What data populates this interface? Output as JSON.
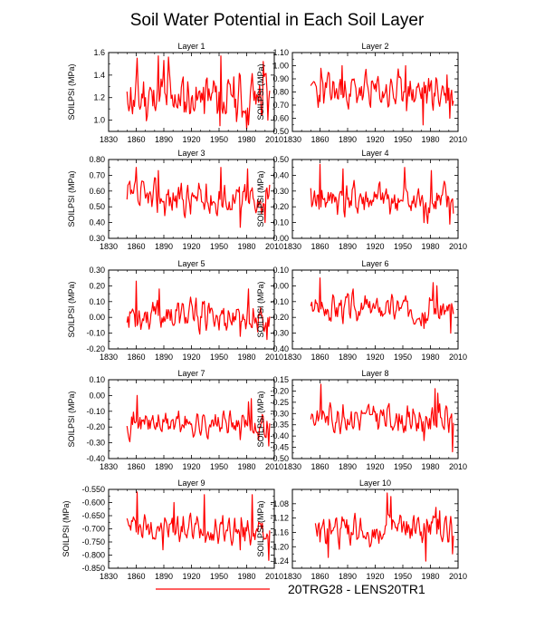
{
  "figure": {
    "title": "Soil Water Potential in Each Soil Layer",
    "legend_label": "20TRG28 - LENS20TR1",
    "line_color": "#ff0000"
  },
  "chart_data": [
    {
      "type": "line",
      "title": "Layer 1",
      "ylabel": "SOILPSI  (MPa)",
      "xlim": [
        1830,
        2010
      ],
      "ylim": [
        0.9,
        1.6
      ],
      "xticks": [
        1830,
        1860,
        1890,
        1920,
        1950,
        1980,
        2010
      ],
      "yticks": [
        "1.0",
        "1.2",
        "1.4",
        "1.6"
      ],
      "ytick_values": [
        1.0,
        1.2,
        1.4,
        1.6
      ],
      "x_start": 1850,
      "x_end": 2005,
      "mean": 1.2,
      "amplitude": 0.13,
      "trend": 0.0,
      "peaks": [
        [
          1861,
          1.55
        ],
        [
          1884,
          1.57
        ],
        [
          1890,
          1.53
        ],
        [
          1895,
          1.56
        ],
        [
          1952,
          1.57
        ],
        [
          1998,
          1.52
        ]
      ],
      "troughs": [
        [
          1951,
          0.95
        ],
        [
          1980,
          0.92
        ],
        [
          2003,
          1.0
        ]
      ],
      "seed": 11,
      "legend": "20TRG28 - LENS20TR1"
    },
    {
      "type": "line",
      "title": "Layer 2",
      "ylabel": "SOILPSI  (MPa)",
      "xlim": [
        1830,
        2010
      ],
      "ylim": [
        0.5,
        1.1
      ],
      "xticks": [
        1830,
        1860,
        1890,
        1920,
        1950,
        1980,
        2010
      ],
      "yticks": [
        "0.50",
        "0.60",
        "0.70",
        "0.80",
        "0.90",
        "1.00",
        "1.10"
      ],
      "ytick_values": [
        0.5,
        0.6,
        0.7,
        0.8,
        0.9,
        1.0,
        1.1
      ],
      "x_start": 1850,
      "x_end": 2005,
      "mean": 0.8,
      "amplitude": 0.08,
      "trend": 0.0,
      "peaks": [
        [
          1861,
          0.98
        ],
        [
          1884,
          1.0
        ],
        [
          1953,
          1.0
        ],
        [
          1998,
          0.93
        ]
      ],
      "troughs": [
        [
          1972,
          0.55
        ],
        [
          2001,
          0.6
        ]
      ],
      "seed": 23,
      "legend": "20TRG28 - LENS20TR1"
    },
    {
      "type": "line",
      "title": "Layer 3",
      "ylabel": "SOILPSI  (MPa)",
      "xlim": [
        1830,
        2010
      ],
      "ylim": [
        0.3,
        0.8
      ],
      "xticks": [
        1830,
        1860,
        1890,
        1920,
        1950,
        1980,
        2010
      ],
      "yticks": [
        "0.30",
        "0.40",
        "0.50",
        "0.60",
        "0.70",
        "0.80"
      ],
      "ytick_values": [
        0.3,
        0.4,
        0.5,
        0.6,
        0.7,
        0.8
      ],
      "x_start": 1850,
      "x_end": 2005,
      "mean": 0.55,
      "amplitude": 0.06,
      "trend": 0.0,
      "peaks": [
        [
          1860,
          0.75
        ],
        [
          1884,
          0.73
        ],
        [
          1952,
          0.75
        ],
        [
          1981,
          0.74
        ]
      ],
      "troughs": [
        [
          1973,
          0.37
        ],
        [
          2000,
          0.4
        ]
      ],
      "seed": 37,
      "legend": "20TRG28 - LENS20TR1"
    },
    {
      "type": "line",
      "title": "Layer 4",
      "ylabel": "SOILPSI  (MPa)",
      "xlim": [
        1830,
        2010
      ],
      "ylim": [
        0.0,
        0.5
      ],
      "xticks": [
        1830,
        1860,
        1890,
        1920,
        1950,
        1980,
        2010
      ],
      "yticks": [
        "0.00",
        "0.10",
        "0.20",
        "0.30",
        "0.40",
        "0.50"
      ],
      "ytick_values": [
        0.0,
        0.1,
        0.2,
        0.3,
        0.4,
        0.5
      ],
      "x_start": 1850,
      "x_end": 2005,
      "mean": 0.25,
      "amplitude": 0.06,
      "trend": -0.02,
      "peaks": [
        [
          1860,
          0.47
        ],
        [
          1885,
          0.44
        ],
        [
          1952,
          0.45
        ],
        [
          1981,
          0.43
        ]
      ],
      "troughs": [
        [
          1973,
          0.1
        ],
        [
          2001,
          0.09
        ]
      ],
      "seed": 41,
      "legend": "20TRG28 - LENS20TR1"
    },
    {
      "type": "line",
      "title": "Layer 5",
      "ylabel": "SOILPSI  (MPa)",
      "xlim": [
        1830,
        2010
      ],
      "ylim": [
        -0.2,
        0.3
      ],
      "xticks": [
        1830,
        1860,
        1890,
        1920,
        1950,
        1980,
        2010
      ],
      "yticks": [
        "-0.20",
        "-0.10",
        "0.00",
        "0.10",
        "0.20",
        "0.30"
      ],
      "ytick_values": [
        -0.2,
        -0.1,
        0.0,
        0.1,
        0.2,
        0.3
      ],
      "x_start": 1850,
      "x_end": 2005,
      "mean": 0.02,
      "amplitude": 0.055,
      "trend": -0.02,
      "peaks": [
        [
          1860,
          0.23
        ],
        [
          1885,
          0.18
        ],
        [
          1982,
          0.18
        ]
      ],
      "troughs": [
        [
          1973,
          -0.12
        ],
        [
          2002,
          -0.14
        ]
      ],
      "seed": 53,
      "legend": "20TRG28 - LENS20TR1"
    },
    {
      "type": "line",
      "title": "Layer 6",
      "ylabel": "SOILPSI  (MPa)",
      "xlim": [
        1830,
        2010
      ],
      "ylim": [
        -0.4,
        0.1
      ],
      "xticks": [
        1830,
        1860,
        1890,
        1920,
        1950,
        1980,
        2010
      ],
      "yticks": [
        "-0.40",
        "-0.30",
        "-0.20",
        "-0.10",
        "0.00",
        "0.10"
      ],
      "ytick_values": [
        -0.4,
        -0.3,
        -0.2,
        -0.1,
        0.0,
        0.1
      ],
      "x_start": 1850,
      "x_end": 2005,
      "mean": -0.13,
      "amplitude": 0.05,
      "trend": -0.02,
      "peaks": [
        [
          1860,
          0.05
        ],
        [
          1983,
          0.02
        ],
        [
          1987,
          0.0
        ]
      ],
      "troughs": [
        [
          1973,
          -0.27
        ],
        [
          2002,
          -0.3
        ]
      ],
      "seed": 67,
      "legend": "20TRG28 - LENS20TR1"
    },
    {
      "type": "line",
      "title": "Layer 7",
      "ylabel": "SOILPSI  (MPa)",
      "xlim": [
        1830,
        2010
      ],
      "ylim": [
        -0.4,
        0.1
      ],
      "xticks": [
        1830,
        1860,
        1890,
        1920,
        1950,
        1980,
        2010
      ],
      "yticks": [
        "-0.40",
        "-0.30",
        "-0.20",
        "-0.10",
        "0.00",
        "0.10"
      ],
      "ytick_values": [
        -0.4,
        -0.3,
        -0.2,
        -0.1,
        0.0,
        0.1
      ],
      "x_start": 1850,
      "x_end": 2005,
      "mean": -0.17,
      "amplitude": 0.045,
      "trend": -0.02,
      "peaks": [
        [
          1861,
          0.0
        ],
        [
          1985,
          -0.02
        ],
        [
          1982,
          -0.04
        ]
      ],
      "troughs": [
        [
          1973,
          -0.28
        ],
        [
          2004,
          -0.32
        ]
      ],
      "seed": 71,
      "legend": "20TRG28 - LENS20TR1"
    },
    {
      "type": "line",
      "title": "Layer 8",
      "ylabel": "SOILPSI  (MPa)",
      "xlim": [
        1830,
        2010
      ],
      "ylim": [
        -0.5,
        -0.15
      ],
      "xticks": [
        1830,
        1860,
        1890,
        1920,
        1950,
        1980,
        2010
      ],
      "yticks": [
        "-0.50",
        "-0.45",
        "-0.40",
        "-0.35",
        "-0.30",
        "-0.25",
        "-0.20",
        "-0.15"
      ],
      "ytick_values": [
        -0.5,
        -0.45,
        -0.4,
        -0.35,
        -0.3,
        -0.25,
        -0.2,
        -0.15
      ],
      "x_start": 1850,
      "x_end": 2005,
      "mean": -0.31,
      "amplitude": 0.035,
      "trend": -0.02,
      "peaks": [
        [
          1861,
          -0.17
        ],
        [
          1985,
          -0.19
        ],
        [
          1988,
          -0.21
        ]
      ],
      "troughs": [
        [
          1973,
          -0.42
        ],
        [
          2004,
          -0.47
        ]
      ],
      "seed": 83,
      "legend": "20TRG28 - LENS20TR1"
    },
    {
      "type": "line",
      "title": "Layer 9",
      "ylabel": "SOILPSI  (MPa)",
      "xlim": [
        1830,
        2010
      ],
      "ylim": [
        -0.85,
        -0.55
      ],
      "xticks": [
        1830,
        1860,
        1890,
        1920,
        1950,
        1980,
        2010
      ],
      "yticks": [
        "-0.850",
        "-0.800",
        "-0.750",
        "-0.700",
        "-0.650",
        "-0.600",
        "-0.550"
      ],
      "ytick_values": [
        -0.85,
        -0.8,
        -0.75,
        -0.7,
        -0.65,
        -0.6,
        -0.55
      ],
      "x_start": 1850,
      "x_end": 2005,
      "mean": -0.69,
      "amplitude": 0.03,
      "trend": -0.02,
      "peaks": [
        [
          1861,
          -0.56
        ],
        [
          1934,
          -0.57
        ],
        [
          1986,
          -0.57
        ],
        [
          1901,
          -0.6
        ]
      ],
      "troughs": [
        [
          1889,
          -0.78
        ],
        [
          1973,
          -0.78
        ],
        [
          2004,
          -0.82
        ]
      ],
      "seed": 97,
      "legend": "20TRG28 - LENS20TR1"
    },
    {
      "type": "line",
      "title": "Layer 10",
      "ylabel": "SOILPSI  (MPa)",
      "xlim": [
        1830,
        2010
      ],
      "ylim": [
        -1.26,
        -1.04
      ],
      "xticks": [
        1830,
        1860,
        1890,
        1920,
        1950,
        1980,
        2010
      ],
      "yticks": [
        "-1.24",
        "-1.20",
        "-1.16",
        "-1.12",
        "-1.08"
      ],
      "ytick_values": [
        -1.24,
        -1.2,
        -1.16,
        -1.12,
        -1.08
      ],
      "x_start": 1855,
      "x_end": 2005,
      "mean": -1.16,
      "amplitude": 0.025,
      "trend": 0.01,
      "peaks": [
        [
          1933,
          -1.05
        ],
        [
          1937,
          -1.06
        ],
        [
          1986,
          -1.09
        ],
        [
          1990,
          -1.1
        ]
      ],
      "troughs": [
        [
          1869,
          -1.23
        ],
        [
          1975,
          -1.24
        ],
        [
          2004,
          -1.22
        ]
      ],
      "seed": 109,
      "legend": "20TRG28 - LENS20TR1"
    }
  ]
}
